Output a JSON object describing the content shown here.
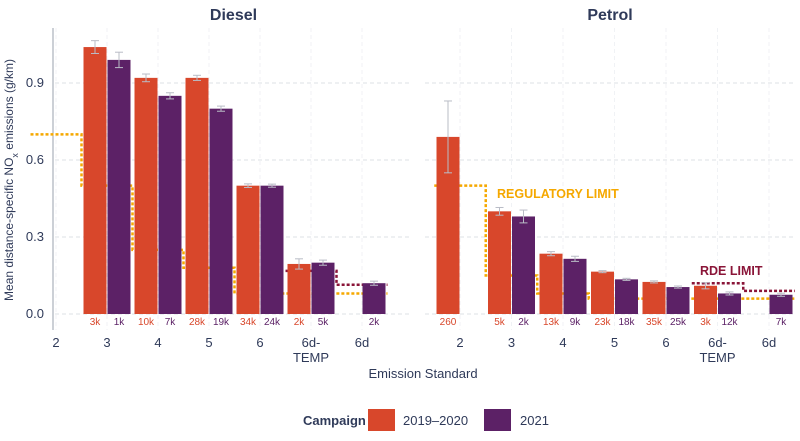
{
  "chart_data": {
    "type": "bar",
    "ylabel": "Mean distance-specific NOx emissions (g/km)",
    "xlabel": "Emission Standard",
    "ylim": [
      0,
      1.1
    ],
    "yticks": [
      0.0,
      0.3,
      0.6,
      0.9
    ],
    "ytick_labels": [
      "0.0",
      "0.3",
      "0.6",
      "0.9"
    ],
    "grid": "horizontal",
    "legend": {
      "title": "Campaign",
      "placement": "bottom-center",
      "entries": [
        {
          "label": "2019–2020",
          "color": "#d8472b"
        },
        {
          "label": "2021",
          "color": "#5c2166"
        }
      ]
    },
    "colors": {
      "series_2019_2020": "#d8472b",
      "series_2021": "#5c2166",
      "regulatory_limit": "#f5a800",
      "rde_limit": "#8a1538",
      "count_labels": "#d8472b",
      "axis_text": "#2f3a59"
    },
    "categories": [
      "2",
      "3",
      "4",
      "5",
      "6",
      "6d-TEMP",
      "6d"
    ],
    "panels": [
      {
        "title": "Diesel",
        "series": [
          {
            "name": "2019–2020",
            "values": [
              null,
              1.04,
              0.92,
              0.92,
              0.5,
              0.195,
              null
            ],
            "error": [
              null,
              0.025,
              0.015,
              0.01,
              0.007,
              0.02,
              null
            ],
            "counts": [
              "",
              "3k",
              "10k",
              "28k",
              "34k",
              "2k",
              ""
            ]
          },
          {
            "name": "2021",
            "values": [
              null,
              0.99,
              0.85,
              0.8,
              0.5,
              0.2,
              0.12
            ],
            "error": [
              null,
              0.03,
              0.012,
              0.01,
              0.006,
              0.01,
              0.008
            ],
            "counts": [
              "",
              "1k",
              "7k",
              "19k",
              "24k",
              "5k",
              "2k"
            ]
          }
        ],
        "regulatory_limit": [
          0.7,
          0.5,
          0.25,
          0.18,
          0.08,
          0.08,
          0.08
        ],
        "rde_limit": [
          null,
          null,
          null,
          null,
          null,
          0.168,
          0.114
        ]
      },
      {
        "title": "Petrol",
        "series": [
          {
            "name": "2019–2020",
            "values": [
              0.69,
              0.4,
              0.235,
              0.165,
              0.125,
              0.11,
              null
            ],
            "error": [
              0.14,
              0.015,
              0.008,
              0.004,
              0.004,
              0.012,
              null
            ],
            "counts": [
              "260",
              "5k",
              "13k",
              "23k",
              "35k",
              "3k",
              ""
            ]
          },
          {
            "name": "2021",
            "values": [
              null,
              0.38,
              0.215,
              0.135,
              0.105,
              0.08,
              0.075
            ],
            "error": [
              null,
              0.025,
              0.01,
              0.004,
              0.004,
              0.006,
              0.006
            ],
            "counts": [
              "",
              "2k",
              "9k",
              "18k",
              "25k",
              "12k",
              "7k"
            ]
          }
        ],
        "regulatory_limit": [
          0.5,
          0.15,
          0.08,
          0.06,
          0.06,
          0.06,
          0.06
        ],
        "rde_limit": [
          null,
          null,
          null,
          null,
          null,
          0.12,
          0.09
        ]
      }
    ],
    "annotations": [
      {
        "text": "REGULATORY LIMIT",
        "color": "#f5a800"
      },
      {
        "text": "RDE LIMIT",
        "color": "#8a1538"
      }
    ]
  }
}
